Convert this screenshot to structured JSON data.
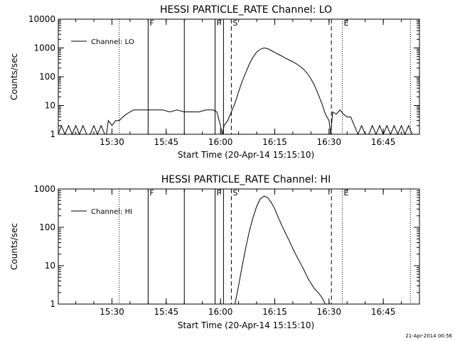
{
  "timestamp": "21-Apr-2014 00:56",
  "chart_data": [
    {
      "type": "line",
      "title": "HESSI PARTICLE_RATE Channel: LO",
      "xlabel": "Start Time (20-Apr-14 15:15:10)",
      "ylabel": "Counts/sec",
      "yscale": "log",
      "xlim": [
        "15:15:10",
        "16:55:00"
      ],
      "ylim": [
        1,
        10000
      ],
      "x_ticks": [
        "15:30",
        "15:45",
        "16:00",
        "16:15",
        "16:30",
        "16:45"
      ],
      "y_ticks": [
        "1",
        "10",
        "100",
        "1000",
        "10000"
      ],
      "legend": {
        "label": "Channel: LO",
        "position": "top-left"
      },
      "grid": false,
      "markers": [
        {
          "time": "15:32:00",
          "style": "dotted",
          "label": ""
        },
        {
          "time": "15:40:00",
          "style": "solid",
          "label": "F"
        },
        {
          "time": "15:50:00",
          "style": "solid",
          "label": ""
        },
        {
          "time": "15:58:30",
          "style": "solid",
          "label": "F"
        },
        {
          "time": "16:00:50",
          "style": "solid",
          "label": ""
        },
        {
          "time": "16:03:00",
          "style": "dashed",
          "label": "S"
        },
        {
          "time": "16:30:40",
          "style": "dashed",
          "label": ""
        },
        {
          "time": "16:33:40",
          "style": "dotted",
          "label": "E"
        },
        {
          "time": "16:52:30",
          "style": "dotted",
          "label": ""
        }
      ],
      "series": [
        {
          "name": "Channel: LO",
          "x": [
            "15:15:10",
            "15:16:00",
            "15:17:00",
            "15:18:00",
            "15:19:00",
            "15:20:00",
            "15:21:00",
            "15:22:00",
            "15:23:00",
            "15:24:00",
            "15:25:00",
            "15:26:00",
            "15:27:00",
            "15:28:00",
            "15:28:30",
            "15:29:00",
            "15:30:00",
            "15:31:00",
            "15:32:00",
            "15:33:00",
            "15:34:00",
            "15:35:00",
            "15:36:00",
            "15:37:00",
            "15:38:00",
            "15:40:00",
            "15:42:00",
            "15:44:00",
            "15:46:00",
            "15:48:00",
            "15:50:00",
            "15:52:00",
            "15:54:00",
            "15:56:00",
            "15:58:00",
            "15:59:00",
            "16:00:00",
            "16:00:30",
            "16:01:00",
            "16:02:00",
            "16:03:00",
            "16:04:00",
            "16:05:00",
            "16:06:00",
            "16:07:00",
            "16:08:00",
            "16:09:00",
            "16:10:00",
            "16:11:00",
            "16:12:00",
            "16:13:00",
            "16:14:00",
            "16:15:00",
            "16:16:00",
            "16:17:00",
            "16:18:00",
            "16:19:00",
            "16:20:00",
            "16:21:00",
            "16:22:00",
            "16:23:00",
            "16:24:00",
            "16:25:00",
            "16:26:00",
            "16:27:00",
            "16:28:00",
            "16:29:00",
            "16:30:00",
            "16:30:30",
            "16:31:00",
            "16:32:00",
            "16:33:00",
            "16:34:00",
            "16:35:00",
            "16:36:00",
            "16:37:00",
            "16:38:00",
            "16:39:00",
            "16:40:00",
            "16:41:00",
            "16:42:00",
            "16:43:00",
            "16:44:00",
            "16:45:00",
            "16:46:00",
            "16:47:00",
            "16:48:00",
            "16:49:00",
            "16:50:00",
            "16:51:00",
            "16:52:00",
            "16:53:00"
          ],
          "y": [
            1,
            2,
            1,
            2,
            1,
            2,
            1,
            2,
            1,
            1,
            2,
            1,
            2,
            1,
            1,
            3,
            2,
            3,
            3,
            4,
            5,
            6,
            7,
            7,
            7,
            7,
            7,
            7,
            6,
            7,
            6,
            6,
            6,
            7,
            7,
            6,
            2,
            1,
            2,
            3,
            6,
            12,
            30,
            70,
            140,
            280,
            480,
            720,
            900,
            1000,
            950,
            820,
            700,
            600,
            520,
            440,
            380,
            330,
            280,
            230,
            180,
            130,
            85,
            50,
            25,
            12,
            5,
            3,
            1,
            6,
            5,
            7,
            5,
            4,
            4,
            2,
            1,
            2,
            1,
            1,
            2,
            1,
            2,
            1,
            2,
            1,
            2,
            1,
            2,
            1,
            2,
            1
          ]
        }
      ]
    },
    {
      "type": "line",
      "title": "HESSI PARTICLE_RATE Channel: HI",
      "xlabel": "Start Time (20-Apr-14 15:15:10)",
      "ylabel": "Counts/sec",
      "yscale": "log",
      "xlim": [
        "15:15:10",
        "16:55:00"
      ],
      "ylim": [
        1,
        1000
      ],
      "x_ticks": [
        "15:30",
        "15:45",
        "16:00",
        "16:15",
        "16:30",
        "16:45"
      ],
      "y_ticks": [
        "1",
        "10",
        "100",
        "1000"
      ],
      "legend": {
        "label": "Channel: HI",
        "position": "top-left"
      },
      "grid": false,
      "markers": [
        {
          "time": "15:32:00",
          "style": "dotted",
          "label": ""
        },
        {
          "time": "15:40:00",
          "style": "solid",
          "label": "F"
        },
        {
          "time": "15:50:00",
          "style": "solid",
          "label": ""
        },
        {
          "time": "15:58:30",
          "style": "solid",
          "label": "F"
        },
        {
          "time": "16:00:50",
          "style": "solid",
          "label": ""
        },
        {
          "time": "16:03:00",
          "style": "dashed",
          "label": "S"
        },
        {
          "time": "16:30:40",
          "style": "dashed",
          "label": ""
        },
        {
          "time": "16:33:40",
          "style": "dotted",
          "label": "E"
        },
        {
          "time": "16:52:30",
          "style": "dotted",
          "label": ""
        }
      ],
      "series": [
        {
          "name": "Channel: HI",
          "x": [
            "16:04:00",
            "16:05:00",
            "16:06:00",
            "16:07:00",
            "16:08:00",
            "16:09:00",
            "16:10:00",
            "16:11:00",
            "16:12:00",
            "16:13:00",
            "16:14:00",
            "16:15:00",
            "16:16:00",
            "16:17:00",
            "16:18:00",
            "16:19:00",
            "16:20:00",
            "16:21:00",
            "16:22:00",
            "16:23:00",
            "16:24:00",
            "16:25:00",
            "16:26:00",
            "16:27:00",
            "16:28:00",
            "16:29:00"
          ],
          "y": [
            1,
            3,
            10,
            30,
            80,
            180,
            350,
            550,
            650,
            600,
            450,
            300,
            180,
            110,
            70,
            45,
            28,
            18,
            12,
            8,
            5,
            3.5,
            2.5,
            2,
            1.5,
            1
          ]
        }
      ]
    }
  ]
}
